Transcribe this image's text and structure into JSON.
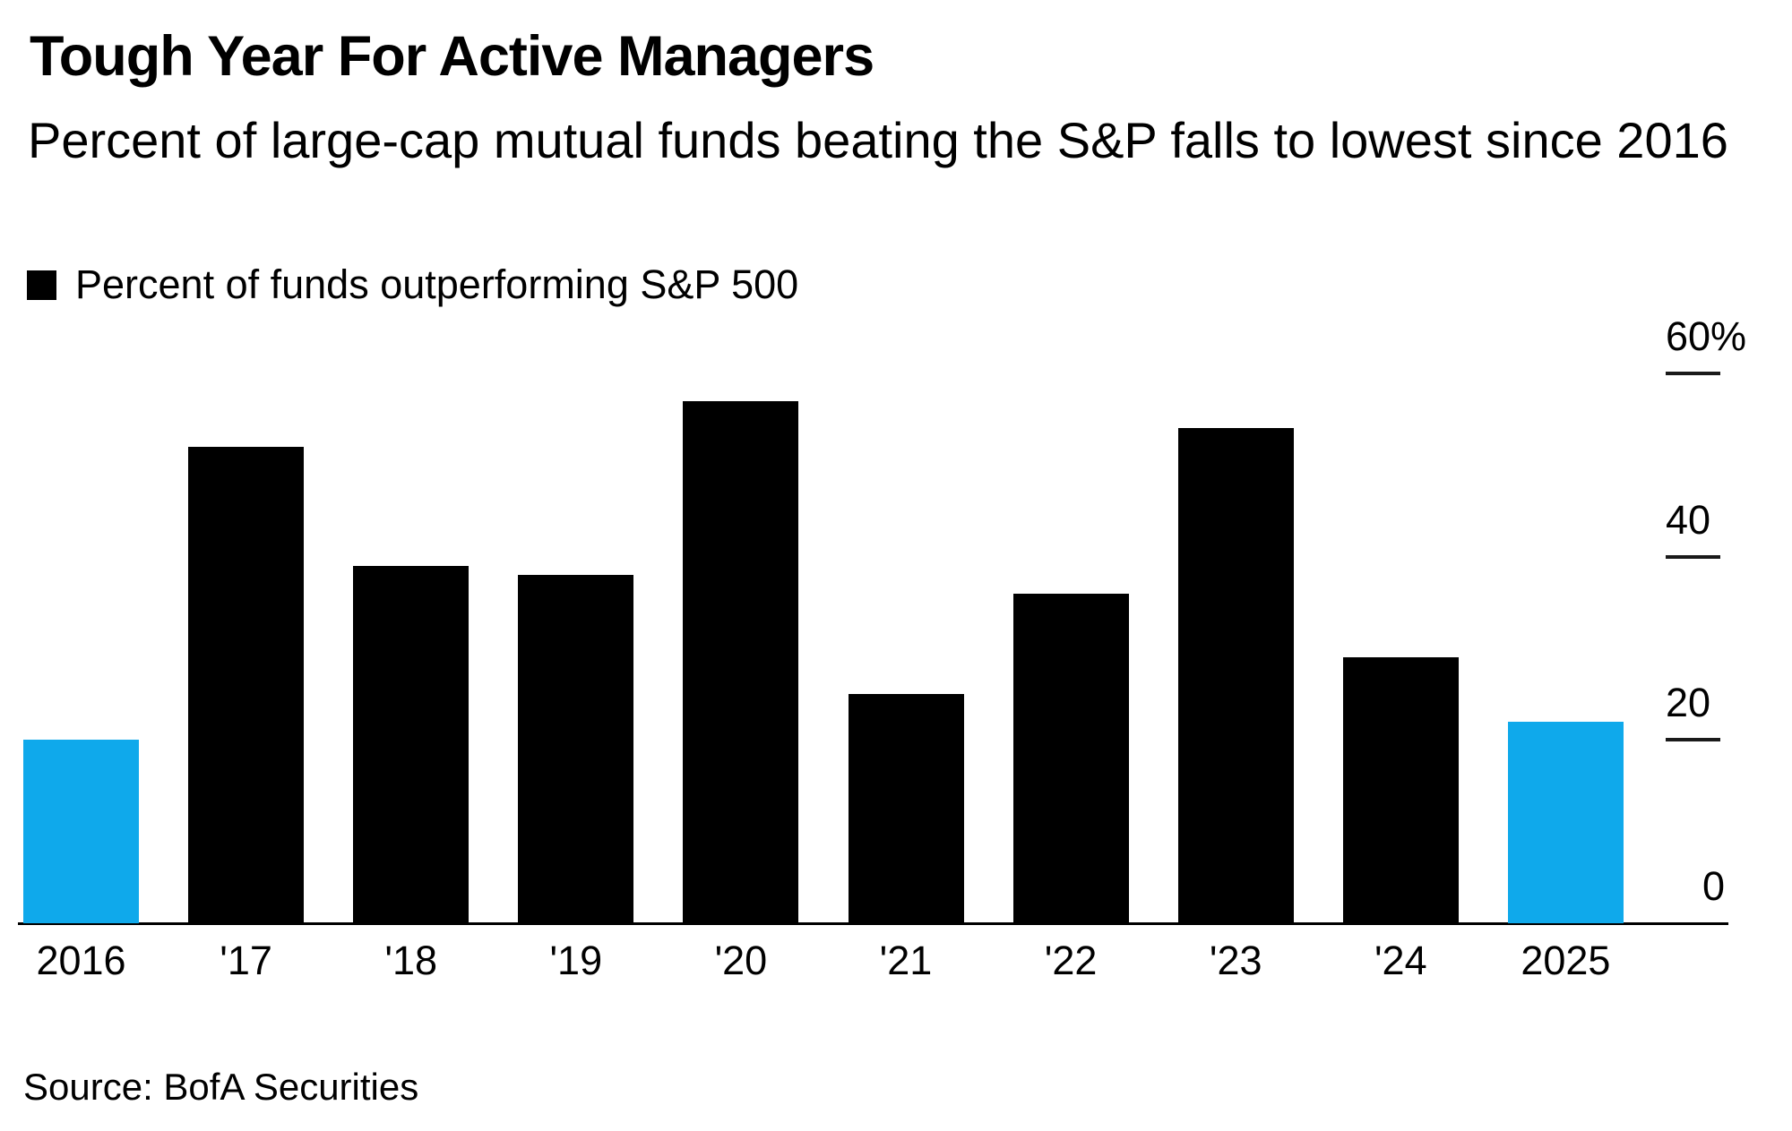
{
  "header": {
    "title": "Tough Year For Active Managers",
    "subtitle": "Percent of large-cap mutual funds beating the S&P falls to lowest since 2016"
  },
  "legend": {
    "label": "Percent of funds outperforming S&P 500",
    "swatch_color": "#000000"
  },
  "source": {
    "text": "Source: BofA Securities"
  },
  "colors": {
    "bar_default": "#000000",
    "bar_highlight": "#0fa9eb",
    "axis": "#000000",
    "text": "#000000",
    "background": "#ffffff"
  },
  "chart_data": {
    "type": "bar",
    "title": "Tough Year For Active Managers",
    "subtitle": "Percent of large-cap mutual funds beating the S&P falls to lowest since 2016",
    "legend_entries": [
      "Percent of funds outperforming S&P 500"
    ],
    "legend_position": "top-left",
    "categories": [
      "2016",
      "'17",
      "'18",
      "'19",
      "'20",
      "'21",
      "'22",
      "'23",
      "'24",
      "2025"
    ],
    "values": [
      20,
      52,
      39,
      38,
      57,
      25,
      36,
      54,
      29,
      22
    ],
    "highlighted_categories": [
      "2016",
      "2025"
    ],
    "highlight_color": "#0fa9eb",
    "default_color": "#000000",
    "xlabel": "",
    "ylabel": "",
    "ylim": [
      0,
      62
    ],
    "yticks": [
      {
        "value": 0,
        "label": "0"
      },
      {
        "value": 20,
        "label": "20"
      },
      {
        "value": 40,
        "label": "40"
      },
      {
        "value": 60,
        "label": "60%"
      }
    ],
    "grid": "off",
    "axis_side": "right",
    "source": "Source: BofA Securities"
  }
}
